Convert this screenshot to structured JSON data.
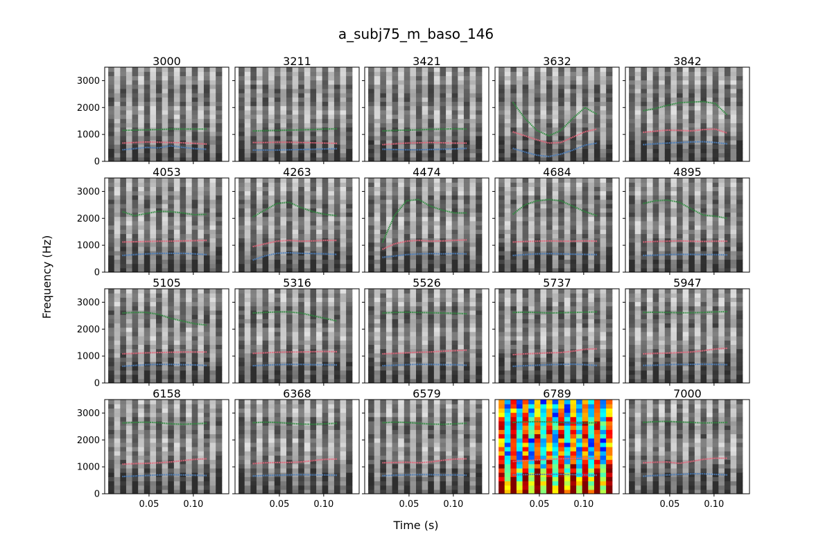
{
  "chart_data": {
    "type": "spectrogram-grid",
    "title": "a_subj75_m_baso_146",
    "xlabel": "Time (s)",
    "ylabel": "Frequency (Hz)",
    "xlim": [
      0.0,
      0.14
    ],
    "ylim": [
      0,
      3500
    ],
    "x_ticks": [
      0.05,
      0.1
    ],
    "x_tick_labels": [
      "0.05",
      "0.10"
    ],
    "y_ticks": [
      0,
      1000,
      2000,
      3000
    ],
    "y_tick_labels": [
      "0",
      "1000",
      "2000",
      "3000"
    ],
    "grid": false,
    "colors": {
      "F1": "#4a7fbf",
      "F2": "#e8667c",
      "F3": "#2e8b3e"
    },
    "time_range": [
      0.02,
      0.115
    ],
    "panels": [
      {
        "label": "3000",
        "colormap": "gray",
        "F1": [
          430,
          470,
          520,
          500,
          580,
          520,
          470,
          450
        ],
        "F2": [
          680,
          700,
          720,
          710,
          700,
          690,
          670,
          640
        ],
        "F3": [
          1150,
          1160,
          1170,
          1180,
          1200,
          1200,
          1200,
          1200
        ]
      },
      {
        "label": "3211",
        "colormap": "gray",
        "F1": [
          420,
          420,
          420,
          430,
          440,
          450,
          460,
          470
        ],
        "F2": [
          700,
          700,
          710,
          710,
          700,
          690,
          680,
          670
        ],
        "F3": [
          1130,
          1140,
          1150,
          1160,
          1170,
          1180,
          1200,
          1210
        ]
      },
      {
        "label": "3421",
        "colormap": "gray",
        "F1": [
          450,
          440,
          430,
          430,
          440,
          450,
          460,
          480
        ],
        "F2": [
          620,
          650,
          680,
          690,
          700,
          690,
          680,
          680
        ],
        "F3": [
          1130,
          1150,
          1160,
          1170,
          1190,
          1200,
          1210,
          1200
        ]
      },
      {
        "label": "3632",
        "colormap": "gray",
        "F1": [
          480,
          350,
          230,
          180,
          270,
          420,
          600,
          680
        ],
        "F2": [
          1100,
          950,
          800,
          680,
          700,
          900,
          1100,
          1200
        ],
        "F3": [
          2200,
          1600,
          1150,
          950,
          1150,
          1600,
          2000,
          1750
        ]
      },
      {
        "label": "3842",
        "colormap": "gray",
        "F1": [
          620,
          650,
          680,
          700,
          720,
          730,
          700,
          650
        ],
        "F2": [
          1080,
          1120,
          1160,
          1150,
          1130,
          1180,
          1200,
          1050
        ],
        "F3": [
          1880,
          1960,
          2080,
          2180,
          2200,
          2220,
          2150,
          1720
        ]
      },
      {
        "label": "4053",
        "colormap": "gray",
        "F1": [
          620,
          650,
          680,
          700,
          700,
          700,
          680,
          650
        ],
        "F2": [
          1120,
          1130,
          1140,
          1150,
          1150,
          1160,
          1170,
          1180
        ],
        "F3": [
          2250,
          2100,
          2180,
          2260,
          2250,
          2200,
          2130,
          2150
        ]
      },
      {
        "label": "4263",
        "colormap": "gray",
        "F1": [
          450,
          600,
          700,
          720,
          700,
          690,
          680,
          660
        ],
        "F2": [
          950,
          1050,
          1150,
          1180,
          1150,
          1160,
          1180,
          1180
        ],
        "F3": [
          2050,
          2300,
          2550,
          2600,
          2400,
          2250,
          2150,
          2100
        ]
      },
      {
        "label": "4474",
        "colormap": "gray",
        "F1": [
          550,
          600,
          650,
          680,
          690,
          680,
          690,
          680
        ],
        "F2": [
          850,
          1050,
          1150,
          1180,
          1150,
          1160,
          1180,
          1200
        ],
        "F3": [
          1100,
          2100,
          2650,
          2700,
          2450,
          2300,
          2200,
          2200
        ]
      },
      {
        "label": "4684",
        "colormap": "gray",
        "F1": [
          620,
          650,
          680,
          690,
          680,
          670,
          660,
          650
        ],
        "F2": [
          1120,
          1140,
          1150,
          1160,
          1150,
          1150,
          1160,
          1150
        ],
        "F3": [
          2150,
          2500,
          2650,
          2700,
          2650,
          2450,
          2250,
          2100
        ]
      },
      {
        "label": "4895",
        "colormap": "gray",
        "F1": [
          620,
          630,
          650,
          660,
          660,
          650,
          650,
          640
        ],
        "F2": [
          1120,
          1140,
          1150,
          1160,
          1150,
          1140,
          1150,
          1150
        ],
        "F3": [
          2550,
          2650,
          2680,
          2600,
          2350,
          2120,
          2080,
          2000
        ]
      },
      {
        "label": "5105",
        "colormap": "gray",
        "F1": [
          620,
          650,
          680,
          690,
          690,
          680,
          670,
          650
        ],
        "F2": [
          1080,
          1100,
          1120,
          1130,
          1140,
          1150,
          1150,
          1150
        ],
        "F3": [
          2600,
          2620,
          2620,
          2550,
          2400,
          2300,
          2200,
          2150
        ]
      },
      {
        "label": "5316",
        "colormap": "gray",
        "F1": [
          640,
          660,
          680,
          690,
          690,
          680,
          680,
          670
        ],
        "F2": [
          1100,
          1120,
          1140,
          1150,
          1150,
          1160,
          1170,
          1160
        ],
        "F3": [
          2600,
          2620,
          2640,
          2640,
          2600,
          2500,
          2400,
          2300
        ]
      },
      {
        "label": "5526",
        "colormap": "gray",
        "F1": [
          640,
          660,
          680,
          690,
          690,
          680,
          680,
          660
        ],
        "F2": [
          1080,
          1100,
          1120,
          1140,
          1150,
          1180,
          1200,
          1220
        ],
        "F3": [
          2600,
          2620,
          2630,
          2620,
          2610,
          2600,
          2590,
          2570
        ]
      },
      {
        "label": "5737",
        "colormap": "gray",
        "F1": [
          620,
          640,
          660,
          680,
          690,
          700,
          680,
          650
        ],
        "F2": [
          1050,
          1080,
          1100,
          1120,
          1130,
          1180,
          1250,
          1270
        ],
        "F3": [
          2620,
          2630,
          2620,
          2600,
          2610,
          2620,
          2630,
          2640
        ]
      },
      {
        "label": "5947",
        "colormap": "gray",
        "F1": [
          650,
          660,
          680,
          690,
          690,
          700,
          690,
          680
        ],
        "F2": [
          1080,
          1100,
          1110,
          1130,
          1150,
          1200,
          1260,
          1290
        ],
        "F3": [
          2620,
          2630,
          2620,
          2610,
          2610,
          2620,
          2640,
          2650
        ]
      },
      {
        "label": "6158",
        "colormap": "gray",
        "F1": [
          640,
          660,
          680,
          700,
          710,
          700,
          690,
          680
        ],
        "F2": [
          1100,
          1120,
          1130,
          1150,
          1180,
          1230,
          1280,
          1300
        ],
        "F3": [
          2630,
          2650,
          2660,
          2640,
          2600,
          2580,
          2600,
          2620
        ]
      },
      {
        "label": "6368",
        "colormap": "gray",
        "F1": [
          660,
          680,
          690,
          700,
          710,
          700,
          700,
          690
        ],
        "F2": [
          1120,
          1150,
          1160,
          1160,
          1180,
          1230,
          1280,
          1290
        ],
        "F3": [
          2640,
          2660,
          2650,
          2620,
          2590,
          2580,
          2600,
          2620
        ]
      },
      {
        "label": "6579",
        "colormap": "gray",
        "F1": [
          670,
          690,
          700,
          710,
          710,
          700,
          700,
          690
        ],
        "F2": [
          1150,
          1160,
          1170,
          1150,
          1180,
          1240,
          1290,
          1300
        ],
        "F3": [
          2640,
          2660,
          2650,
          2620,
          2590,
          2580,
          2600,
          2620
        ]
      },
      {
        "label": "6789",
        "colormap": "jet",
        "F1": [
          700,
          710,
          720,
          720,
          720,
          710,
          700,
          690
        ],
        "F2": [
          1200,
          1230,
          1250,
          1280,
          1300,
          1310,
          1320,
          1320
        ],
        "F3": [
          2650,
          2670,
          2680,
          2670,
          2650,
          2630,
          2630,
          2640
        ]
      },
      {
        "label": "7000",
        "colormap": "gray",
        "F1": [
          650,
          680,
          700,
          720,
          740,
          740,
          720,
          700
        ],
        "F2": [
          1150,
          1170,
          1180,
          1130,
          1200,
          1280,
          1320,
          1320
        ],
        "F3": [
          2650,
          2680,
          2690,
          2670,
          2650,
          2630,
          2640,
          2650
        ]
      }
    ]
  }
}
